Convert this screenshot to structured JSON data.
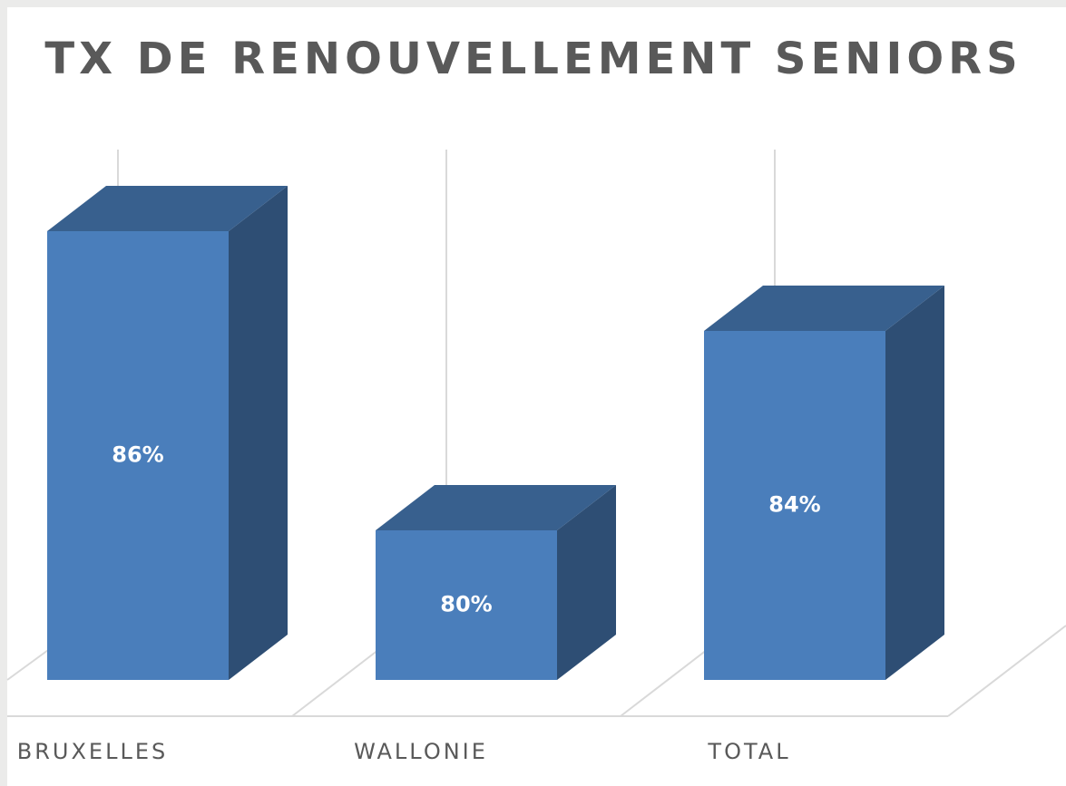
{
  "chart_data": {
    "type": "bar3d",
    "title": "TX DE RENOUVELLEMENT SENIORS",
    "categories": [
      "BRUXELLES",
      "WALLONIE",
      "TOTAL"
    ],
    "values": [
      86,
      80,
      84
    ],
    "value_labels": [
      "86%",
      "80%",
      "84%"
    ],
    "color": "#4a7ebb",
    "ylim": [
      77,
      88
    ]
  }
}
